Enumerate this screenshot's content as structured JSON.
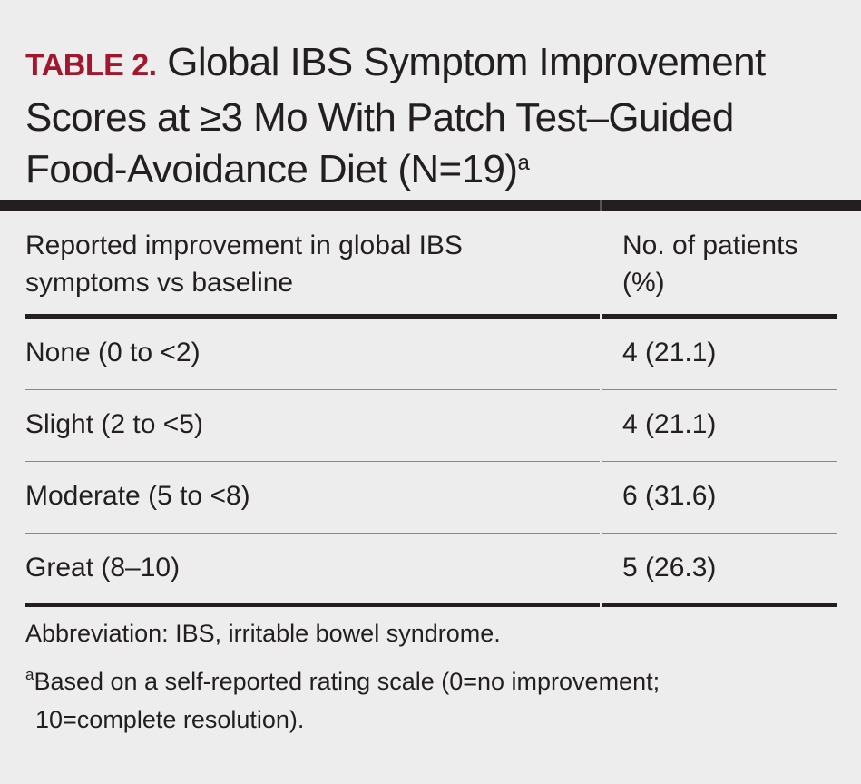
{
  "title": {
    "label": "TABLE 2.",
    "text": "Global IBS Symptom Improvement Scores at ≥3 Mo With Patch Test–Guided Food-Avoidance Diet (N=19)",
    "superscript": "a"
  },
  "colors": {
    "label": "#a0172e",
    "text": "#231f20",
    "background": "#eeeded"
  },
  "table": {
    "headers": [
      "Reported improvement in global IBS symptoms vs baseline",
      "No. of patients (%)"
    ],
    "rows": [
      {
        "improvement": "None (0 to <2)",
        "patients": "4 (21.1)"
      },
      {
        "improvement": "Slight (2 to <5)",
        "patients": "4 (21.1)"
      },
      {
        "improvement": "Moderate (5 to <8)",
        "patients": "6 (31.6)"
      },
      {
        "improvement": "Great (8–10)",
        "patients": "5 (26.3)"
      }
    ]
  },
  "footnotes": {
    "abbreviation": "Abbreviation: IBS, irritable bowel syndrome.",
    "note_marker": "a",
    "note_line1": "Based on a self-reported rating scale (0=no improvement;",
    "note_line2": "10=complete resolution)."
  }
}
